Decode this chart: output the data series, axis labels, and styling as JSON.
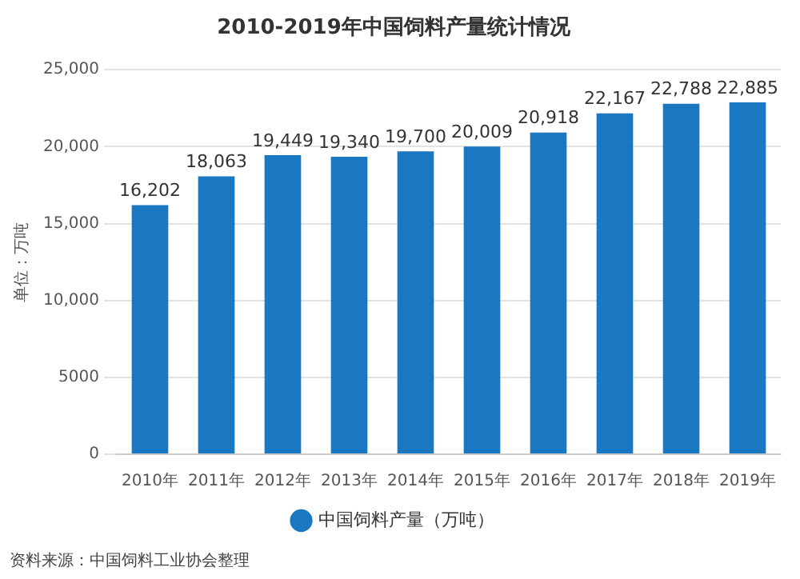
{
  "chart_data": {
    "type": "bar",
    "title": "2010-2019年中国饲料产量统计情况",
    "ylabel": "单位：万吨",
    "categories": [
      "2010年",
      "2011年",
      "2012年",
      "2013年",
      "2014年",
      "2015年",
      "2016年",
      "2017年",
      "2018年",
      "2019年"
    ],
    "series": [
      {
        "name": "中国饲料产量（万吨）",
        "color": "#1a78c2",
        "values": [
          16202,
          18063,
          19449,
          19340,
          19700,
          20009,
          20918,
          22167,
          22788,
          22885
        ],
        "value_labels": [
          "16,202",
          "18,063",
          "19,449",
          "19,340",
          "19,700",
          "20,009",
          "20,918",
          "22,167",
          "22,788",
          "22,885"
        ]
      }
    ],
    "ylim": [
      0,
      25000
    ],
    "yticks": [
      0,
      5000,
      {
        "value": 10000,
        "label": "10,000"
      },
      {
        "value": 15000,
        "label": "15,000"
      },
      {
        "value": 20000,
        "label": "20,000"
      },
      {
        "value": 25000,
        "label": "25,000"
      }
    ],
    "grid": "y",
    "legend": "bottom",
    "annotations": [
      "资料来源：中国饲料工业协会整理"
    ]
  }
}
